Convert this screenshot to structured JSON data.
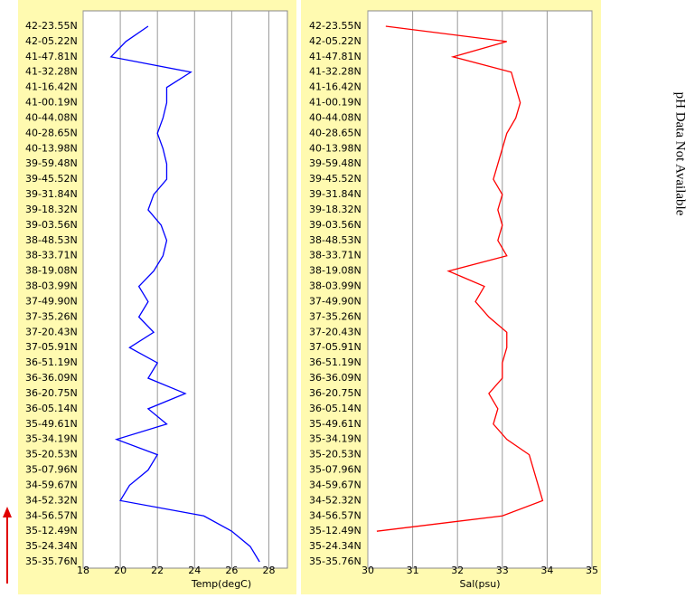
{
  "chart_data": [
    {
      "type": "line",
      "orientation": "horizontal",
      "x_label": "Temp(degC)",
      "categories": [
        "42-23.55N",
        "42-05.22N",
        "41-47.81N",
        "41-32.28N",
        "41-16.42N",
        "41-00.19N",
        "40-44.08N",
        "40-28.65N",
        "40-13.98N",
        "39-59.48N",
        "39-45.52N",
        "39-31.84N",
        "39-18.32N",
        "39-03.56N",
        "38-48.53N",
        "38-33.71N",
        "38-19.08N",
        "38-03.99N",
        "37-49.90N",
        "37-35.26N",
        "37-20.43N",
        "37-05.91N",
        "36-51.19N",
        "36-36.09N",
        "36-20.75N",
        "36-05.14N",
        "35-49.61N",
        "35-34.19N",
        "35-20.53N",
        "35-07.96N",
        "34-59.67N",
        "34-52.32N",
        "34-56.57N",
        "35-12.49N",
        "35-24.34N",
        "35-35.76N"
      ],
      "series": [
        {
          "color": "#0000ff",
          "values": [
            21.5,
            20.3,
            19.5,
            23.8,
            22.5,
            22.5,
            22.3,
            22.0,
            22.3,
            22.5,
            22.5,
            21.8,
            21.5,
            22.2,
            22.5,
            22.3,
            21.8,
            21.0,
            21.5,
            21.0,
            21.8,
            20.5,
            22.0,
            21.5,
            23.5,
            21.5,
            22.5,
            19.8,
            22.0,
            21.5,
            20.5,
            20.0,
            24.5,
            26.0,
            27.0,
            27.5
          ]
        }
      ],
      "xlim": [
        18,
        29
      ],
      "xticks": [
        18,
        20,
        22,
        24,
        26,
        28
      ],
      "grid": true
    },
    {
      "type": "line",
      "orientation": "horizontal",
      "x_label": "Sal(psu)",
      "categories": [
        "42-23.55N",
        "42-05.22N",
        "41-47.81N",
        "41-32.28N",
        "41-16.42N",
        "41-00.19N",
        "40-44.08N",
        "40-28.65N",
        "40-13.98N",
        "39-59.48N",
        "39-45.52N",
        "39-31.84N",
        "39-18.32N",
        "39-03.56N",
        "38-48.53N",
        "38-33.71N",
        "38-19.08N",
        "38-03.99N",
        "37-49.90N",
        "37-35.26N",
        "37-20.43N",
        "37-05.91N",
        "36-51.19N",
        "36-36.09N",
        "36-20.75N",
        "36-05.14N",
        "35-49.61N",
        "35-34.19N",
        "35-20.53N",
        "35-07.96N",
        "34-59.67N",
        "34-52.32N",
        "34-56.57N",
        "35-12.49N",
        "35-24.34N",
        "35-35.76N"
      ],
      "series": [
        {
          "color": "#ff0000",
          "values": [
            30.4,
            33.1,
            31.9,
            33.2,
            33.3,
            33.4,
            33.3,
            33.1,
            33.0,
            32.9,
            32.8,
            33.0,
            32.9,
            33.0,
            32.9,
            33.1,
            31.8,
            32.6,
            32.4,
            32.7,
            33.1,
            33.1,
            33.0,
            33.0,
            32.7,
            32.9,
            32.8,
            33.1,
            33.6,
            33.7,
            33.8,
            33.9,
            33.0,
            30.2,
            null,
            null
          ]
        }
      ],
      "xlim": [
        30,
        35
      ],
      "xticks": [
        30,
        31,
        32,
        33,
        34,
        35
      ],
      "grid": true
    }
  ],
  "side_text": "pH Data Not Available"
}
